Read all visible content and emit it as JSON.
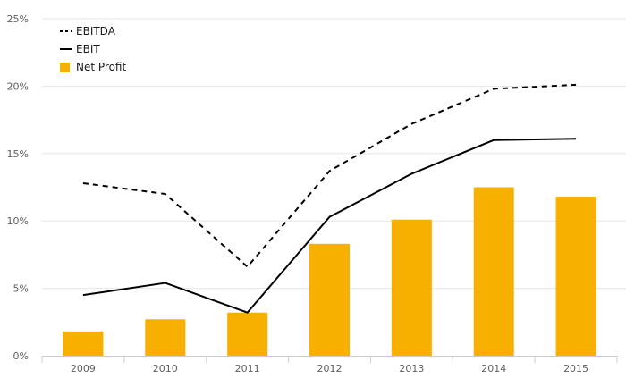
{
  "chart_data": {
    "type": "bar",
    "categories": [
      "2009",
      "2010",
      "2011",
      "2012",
      "2013",
      "2014",
      "2015"
    ],
    "ylim": [
      0,
      25
    ],
    "y_ticks": [
      "0%",
      "5%",
      "10%",
      "15%",
      "20%",
      "25%"
    ],
    "y_tick_values": [
      0,
      5,
      10,
      15,
      20,
      25
    ],
    "grid": true,
    "legend_position": "top-left",
    "title": "",
    "xlabel": "",
    "ylabel": "",
    "series": [
      {
        "name": "EBITDA",
        "type": "line",
        "style": "dashed",
        "color": "#000000",
        "values": [
          12.8,
          12.0,
          6.6,
          13.7,
          17.2,
          19.8,
          20.1
        ]
      },
      {
        "name": "EBIT",
        "type": "line",
        "style": "solid",
        "color": "#000000",
        "values": [
          4.5,
          5.4,
          3.2,
          10.3,
          13.5,
          16.0,
          16.1
        ]
      },
      {
        "name": "Net Profit",
        "type": "bar",
        "color": "#f8b000",
        "values": [
          1.8,
          2.7,
          3.2,
          8.3,
          10.1,
          12.5,
          11.8
        ]
      }
    ]
  }
}
